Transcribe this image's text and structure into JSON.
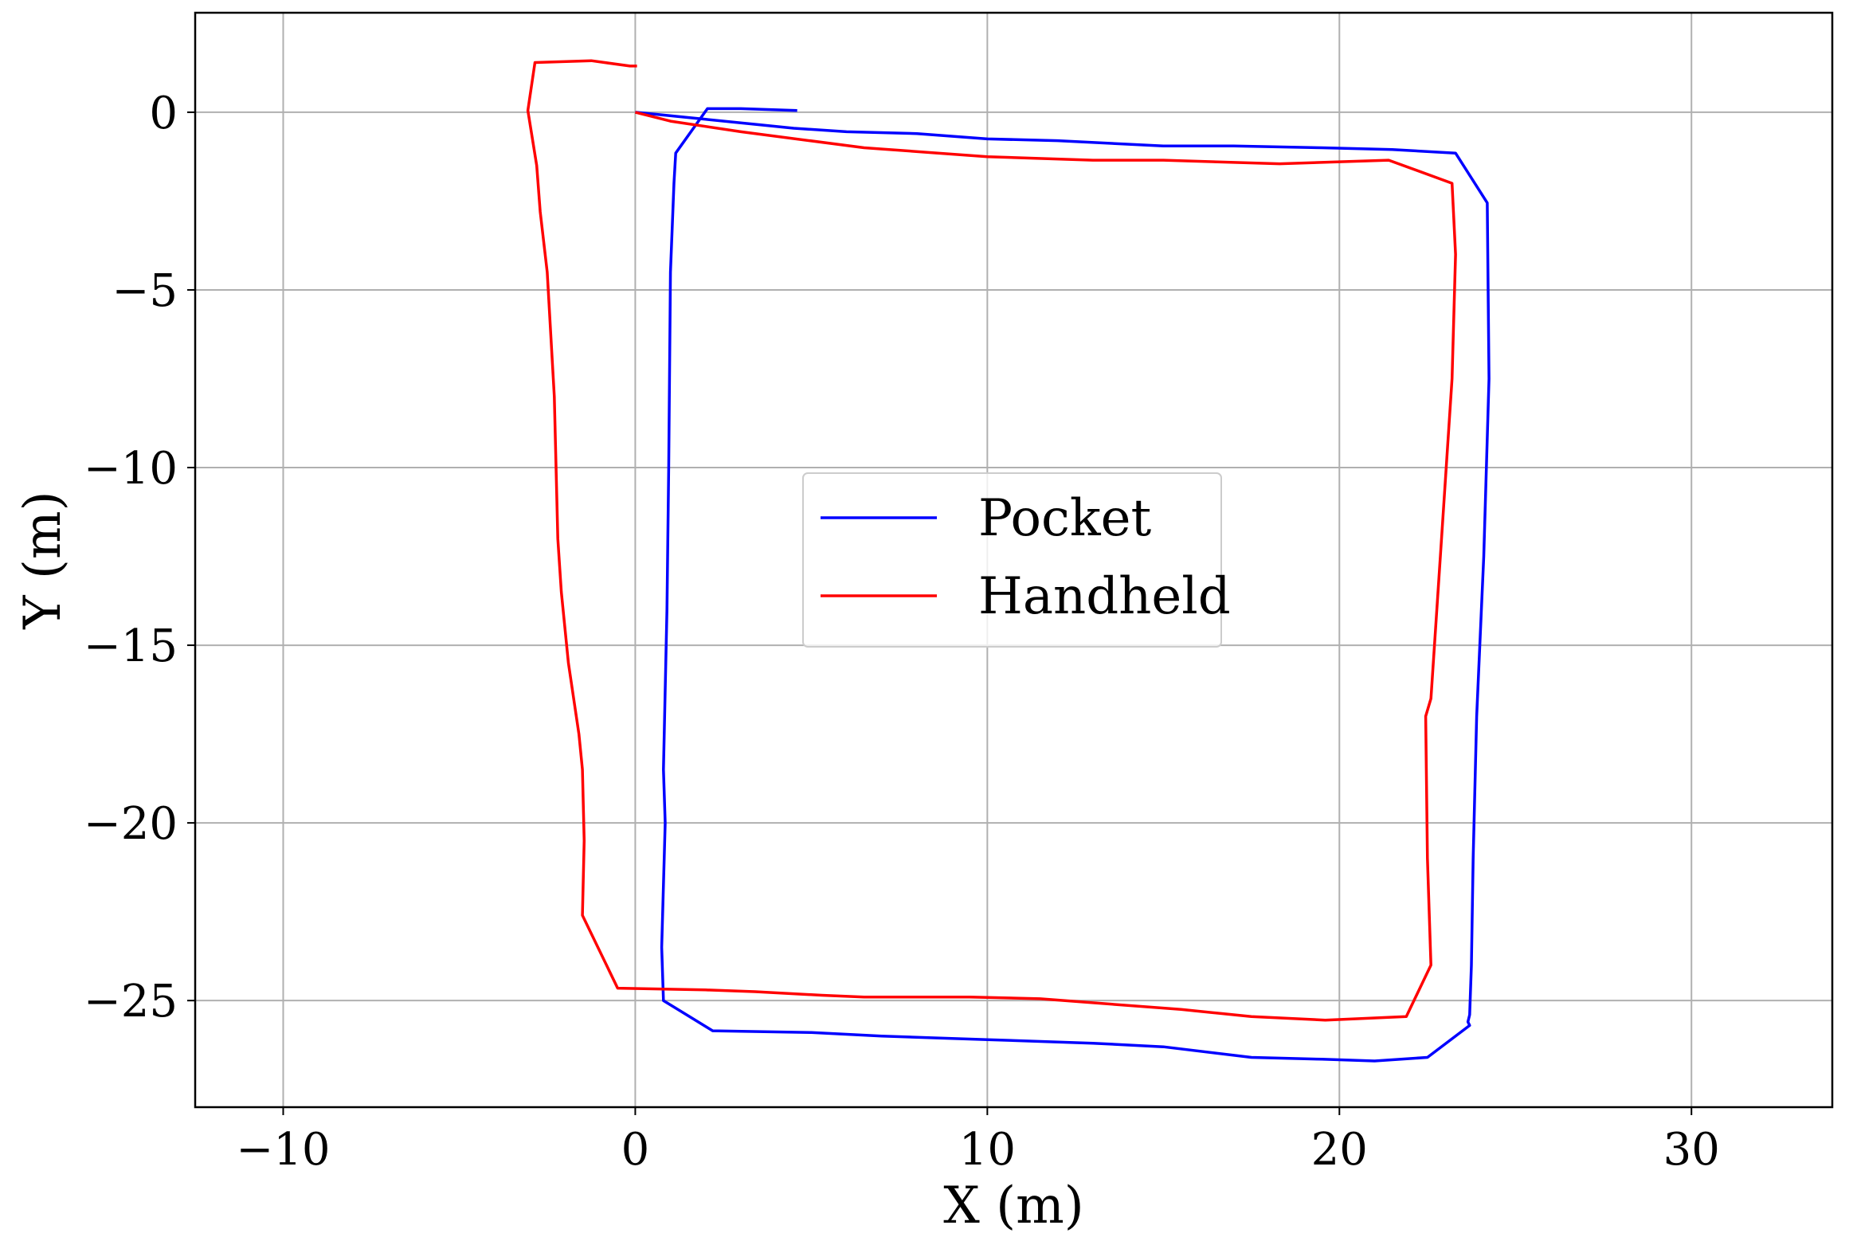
{
  "chart_data": {
    "type": "line",
    "title": "",
    "xlabel": "X (m)",
    "ylabel": "Y (m)",
    "xlim": [
      -12.5,
      34
    ],
    "ylim": [
      -28.0,
      2.8
    ],
    "xticks": [
      -10,
      0,
      10,
      20,
      30
    ],
    "yticks": [
      0,
      -5,
      -10,
      -15,
      -20,
      -25
    ],
    "xtick_labels": [
      "−10",
      "0",
      "10",
      "20",
      "30"
    ],
    "ytick_labels": [
      "0",
      "−5",
      "−10",
      "−15",
      "−20",
      "−25"
    ],
    "grid": true,
    "legend_position": "center",
    "series": [
      {
        "name": "Pocket",
        "color": "#0000ff",
        "x": [
          0,
          2.0,
          3.5,
          4.5,
          6,
          8.0,
          10,
          12,
          15,
          17,
          19.5,
          21.5,
          23.3,
          24.2,
          24.25,
          24.1,
          23.9,
          23.8,
          23.75,
          23.7,
          23.65,
          23.7,
          22.5,
          21.0,
          19.5,
          17.5,
          15.0,
          13.0,
          10.0,
          7.0,
          5.0,
          2.2,
          0.8,
          0.75,
          0.85,
          0.8,
          0.9,
          0.95,
          1.0,
          1.1,
          1.15,
          2.05,
          3.0,
          4.6
        ],
        "y": [
          0,
          -0.2,
          -0.35,
          -0.45,
          -0.55,
          -0.6,
          -0.75,
          -0.8,
          -0.95,
          -0.95,
          -1.0,
          -1.05,
          -1.15,
          -2.55,
          -7.5,
          -12.5,
          -17.0,
          -21.0,
          -24.0,
          -25.4,
          -25.6,
          -25.7,
          -26.6,
          -26.7,
          -26.65,
          -26.6,
          -26.3,
          -26.2,
          -26.1,
          -26.0,
          -25.9,
          -25.85,
          -25.0,
          -23.5,
          -20.0,
          -18.5,
          -14.0,
          -10.0,
          -4.5,
          -2.0,
          -1.15,
          0.1,
          0.1,
          0.05
        ]
      },
      {
        "name": "Handheld",
        "color": "#ff0000",
        "x": [
          0,
          1.0,
          3.0,
          6.5,
          10,
          13,
          15,
          18.3,
          21.4,
          23.2,
          23.3,
          23.2,
          22.9,
          22.6,
          22.45,
          22.5,
          22.6,
          21.9,
          19.6,
          17.5,
          15.5,
          11.5,
          9.5,
          6.5,
          5.3,
          3.4,
          2.0,
          -0.5,
          -1.5,
          -1.45,
          -1.5,
          -1.6,
          -1.9,
          -2.1,
          -2.2,
          -2.3,
          -2.5,
          -2.7,
          -2.8,
          -3.05,
          -2.85,
          -1.25,
          -0.15,
          0.05
        ],
        "y": [
          0,
          -0.25,
          -0.55,
          -1.0,
          -1.25,
          -1.35,
          -1.35,
          -1.45,
          -1.35,
          -2.0,
          -4.0,
          -7.5,
          -12.0,
          -16.5,
          -17.0,
          -21.0,
          -24.0,
          -25.45,
          -25.55,
          -25.45,
          -25.25,
          -24.95,
          -24.9,
          -24.9,
          -24.85,
          -24.75,
          -24.7,
          -24.65,
          -22.6,
          -20.5,
          -18.5,
          -17.5,
          -15.5,
          -13.5,
          -12.0,
          -8.0,
          -4.5,
          -2.8,
          -1.5,
          0.05,
          1.4,
          1.45,
          1.3,
          1.3
        ]
      }
    ]
  }
}
